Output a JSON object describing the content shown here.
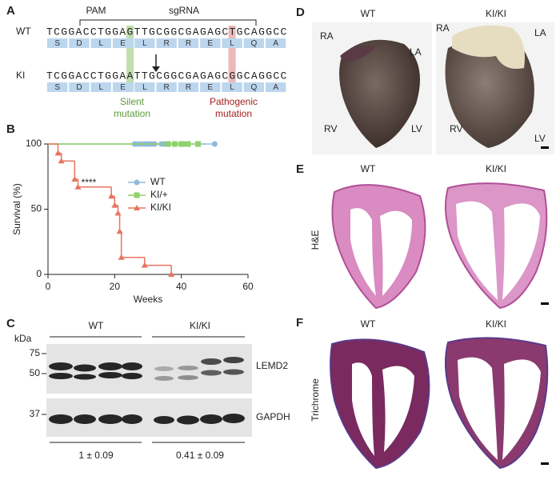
{
  "panels": {
    "A": {
      "label": "A",
      "pam": "PAM",
      "sgrna": "sgRNA",
      "wt_label": "WT",
      "wt_seq": "TCGGACCTGGAGTTGCGGCGAGAGCTGCAGGCC",
      "ki_label": "KI",
      "ki_seq": "TCGGACCTGGAATTGCGGCGAGAGCGGCAGGCC",
      "amino_acids": [
        "S",
        "D",
        "L",
        "E",
        "L",
        "R",
        "R",
        "E",
        "L",
        "Q",
        "A"
      ],
      "silent": [
        "Silent",
        "mutation"
      ],
      "pathogenic": [
        "Pathogenic",
        "mutation"
      ]
    },
    "B": {
      "label": "B"
    },
    "C": {
      "label": "C",
      "kda": "kDa",
      "markers": [
        "75",
        "50",
        "37"
      ],
      "groups": [
        "WT",
        "KI/KI"
      ],
      "proteins": [
        "LEMD2",
        "GAPDH"
      ],
      "quantification": [
        "1 ± 0.09",
        "0.41 ± 0.09"
      ]
    },
    "D": {
      "label": "D",
      "groups": [
        "WT",
        "KI/KI"
      ],
      "chambers": [
        "RA",
        "LA",
        "RV",
        "LV"
      ]
    },
    "E": {
      "label": "E",
      "groups": [
        "WT",
        "KI/KI"
      ],
      "stain": "H&E"
    },
    "F": {
      "label": "F",
      "groups": [
        "WT",
        "KI/KI"
      ],
      "stain": "Trichrome"
    }
  },
  "chart_data": {
    "type": "step",
    "xlabel": "Weeks",
    "ylabel": "Survival (%)",
    "annotation": "****",
    "xlim": [
      0,
      60
    ],
    "xticks": [
      0,
      20,
      40,
      60
    ],
    "ylim": [
      0,
      100
    ],
    "yticks": [
      0,
      50,
      100
    ],
    "series": [
      {
        "name": "WT",
        "color": "#8fb8de",
        "marker": "circle",
        "x": [
          0,
          26,
          27,
          28,
          29,
          30,
          31,
          32,
          34,
          35,
          50
        ],
        "values": [
          100,
          100,
          100,
          100,
          100,
          100,
          100,
          100,
          100,
          100,
          100
        ]
      },
      {
        "name": "KI/+",
        "color": "#8fd16a",
        "marker": "square",
        "x": [
          0,
          36,
          38,
          40,
          41,
          42,
          45
        ],
        "values": [
          100,
          100,
          100,
          100,
          100,
          100,
          100
        ]
      },
      {
        "name": "KI/KI",
        "color": "#e8735f",
        "marker": "triangle",
        "x": [
          0,
          3,
          4,
          8,
          9,
          19,
          20,
          21,
          21.5,
          22,
          29,
          37
        ],
        "values": [
          100,
          93,
          87,
          73,
          67,
          60,
          53,
          47,
          33,
          13,
          7,
          0
        ]
      }
    ]
  }
}
